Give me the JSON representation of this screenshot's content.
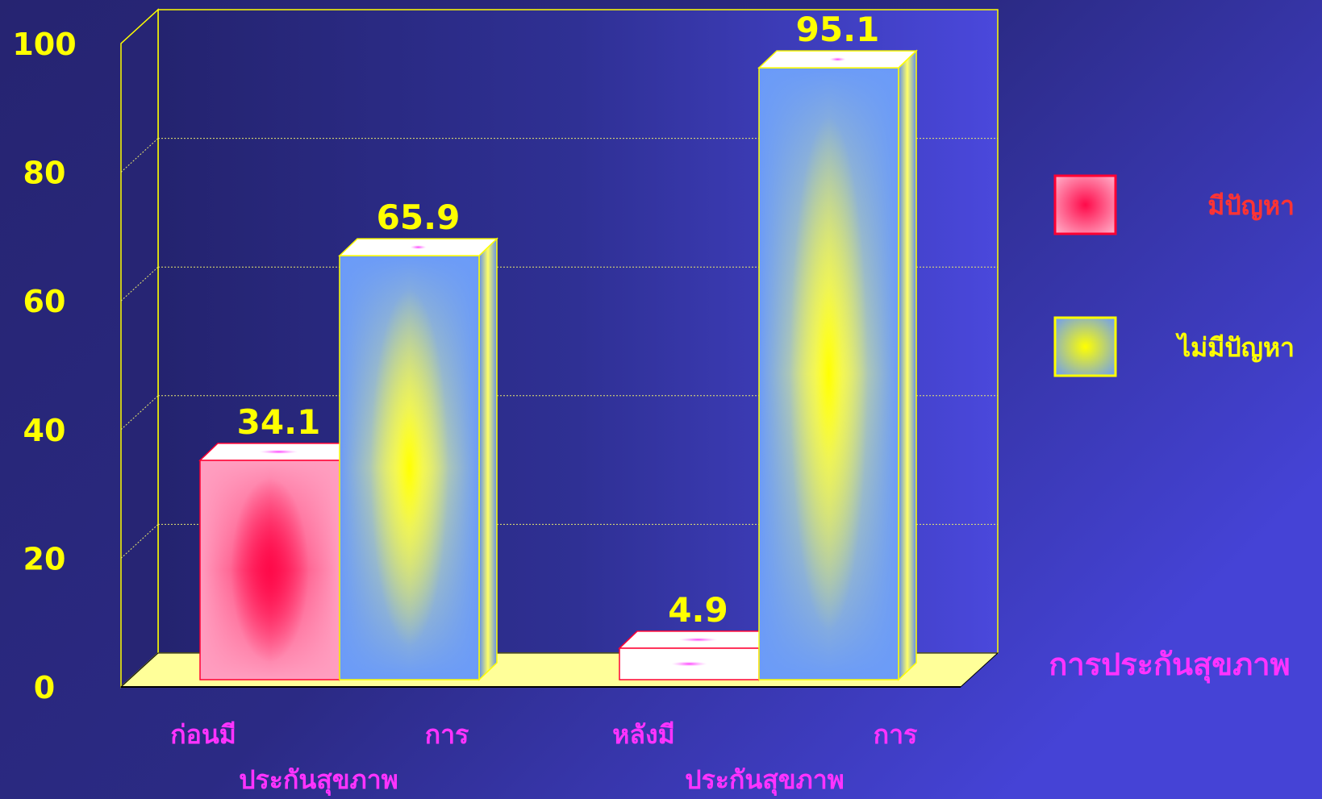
{
  "chart_data": {
    "type": "bar",
    "title": "",
    "xlabel": "การประกันสุขภาพ",
    "ylabel": "",
    "ylim": [
      0,
      100
    ],
    "yticks": [
      0,
      20,
      40,
      60,
      80,
      100
    ],
    "grid": true,
    "legend_position": "right",
    "categories": [
      {
        "line1": "ก่อนมี",
        "line1_end": "การ",
        "line2": "ประกันสุขภาพ"
      },
      {
        "line1": "หลังมี",
        "line1_end": "การ",
        "line2": "ประกันสุขภาพ"
      }
    ],
    "series": [
      {
        "name": "มีปัญหา",
        "values": [
          34.1,
          4.9
        ],
        "color": "#ff3366"
      },
      {
        "name": "ไม่มีปัญหา",
        "values": [
          65.9,
          95.1
        ],
        "color": "#6e9cf7"
      }
    ],
    "colors": {
      "background": "#272574",
      "axis_text": "#ffff00",
      "category_text": "#ff33ff",
      "legend_text_1": "#ff3333",
      "legend_text_2": "#ffff00",
      "floor": "#ffff99",
      "frame": "#ffff00"
    }
  }
}
